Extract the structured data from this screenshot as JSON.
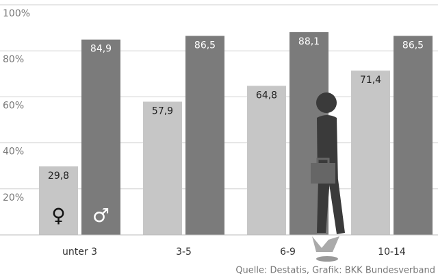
{
  "chart_data": {
    "type": "bar",
    "categories": [
      "unter 3",
      "3-5",
      "6-9",
      "10-14"
    ],
    "series": [
      {
        "name": "♀",
        "color": "#c6c6c6",
        "values": [
          29.8,
          57.9,
          64.8,
          71.4
        ],
        "value_labels": [
          "29,8",
          "57,9",
          "64,8",
          "71,4"
        ]
      },
      {
        "name": "♂",
        "color": "#7b7b7b",
        "values": [
          84.9,
          86.5,
          88.1,
          86.5
        ],
        "value_labels": [
          "84,9",
          "86,5",
          "88,1",
          "86,5"
        ]
      }
    ],
    "ylim": [
      0,
      100
    ],
    "yticks": [
      {
        "value": 20,
        "label": "20%"
      },
      {
        "value": 40,
        "label": "40%"
      },
      {
        "value": 60,
        "label": "60%"
      },
      {
        "value": 80,
        "label": "80%"
      },
      {
        "value": 100,
        "label": "100%"
      }
    ],
    "grid": true,
    "source": "Quelle: Destatis, Grafik: BKK Bundesverband"
  }
}
